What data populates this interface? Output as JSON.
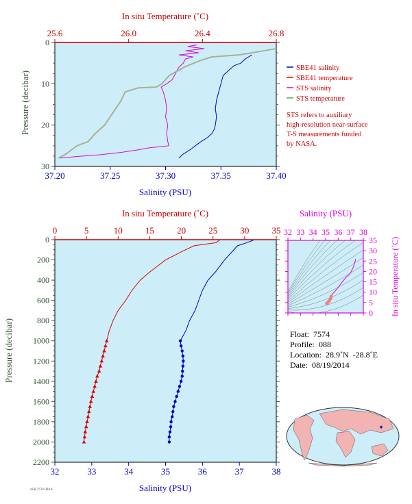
{
  "colors": {
    "plot_bg": "#cdeef8",
    "blue": "#0000cc",
    "red": "#dd0000",
    "magenta": "#dd00dd",
    "olive": "#a8b090",
    "frame_red": "#cc0000",
    "pressure_label": "#2f4f2f"
  },
  "legend": {
    "items": [
      {
        "label": "SBE41 salinity",
        "color": "#0000cc"
      },
      {
        "label": "SBE41 temperature",
        "color": "#dd0000"
      },
      {
        "label": "STS salinity",
        "color": "#dd00dd"
      },
      {
        "label": "STS temperature",
        "color": "#33bb33"
      }
    ],
    "note_lines": [
      "STS refers to auxiliary",
      "high-resolution near-surface",
      "T-S measurements funded",
      "by NASA."
    ]
  },
  "float_info": {
    "float": "Float:  7574",
    "profile": "Profile:  088",
    "location": "Location:  28.9˚N  -28.8˚E",
    "date": "Date:  08/19/2014"
  },
  "footer_id": "AG8-7574-088-X",
  "chart_data": [
    {
      "type": "line",
      "title": "",
      "top_axis_label": "In situ Temperature (˚C)",
      "top_ticks": [
        "25.6",
        "26.0",
        "26.4",
        "26.8"
      ],
      "top_range": [
        25.6,
        26.8
      ],
      "bottom_axis_label": "Salinity (PSU)",
      "bottom_ticks": [
        "37.20",
        "37.25",
        "37.30",
        "37.35",
        "37.40"
      ],
      "bottom_range": [
        37.2,
        37.4
      ],
      "ylabel": "Pressure (decibar)",
      "y_ticks": [
        "0",
        "10",
        "20",
        "30"
      ],
      "y_range": [
        0,
        30
      ],
      "y_inverted": true,
      "grid": false,
      "series": [
        {
          "name": "SBE41 salinity",
          "axis": "salinity",
          "points": [
            [
              37.378,
              3
            ],
            [
              37.372,
              4
            ],
            [
              37.368,
              5
            ],
            [
              37.362,
              5.6
            ],
            [
              37.358,
              6.5
            ],
            [
              37.352,
              8
            ],
            [
              37.35,
              10
            ],
            [
              37.348,
              12
            ],
            [
              37.346,
              14
            ],
            [
              37.345,
              16
            ],
            [
              37.346,
              18
            ],
            [
              37.345,
              20
            ],
            [
              37.344,
              21
            ],
            [
              37.342,
              22
            ],
            [
              37.338,
              23
            ],
            [
              37.332,
              24
            ],
            [
              37.327,
              25
            ],
            [
              37.322,
              26
            ],
            [
              37.316,
              27
            ],
            [
              37.312,
              28
            ]
          ]
        },
        {
          "name": "SBE41 temperature",
          "axis": "temperature",
          "points": [
            [
              25.6,
              0.05
            ],
            [
              26.8,
              0.05
            ]
          ]
        },
        {
          "name": "STS salinity",
          "axis": "salinity",
          "points": [
            [
              37.328,
              0.6
            ],
            [
              37.32,
              1
            ],
            [
              37.335,
              1.5
            ],
            [
              37.318,
              2
            ],
            [
              37.33,
              2.5
            ],
            [
              37.312,
              3
            ],
            [
              37.325,
              3.5
            ],
            [
              37.318,
              4
            ],
            [
              37.316,
              5
            ],
            [
              37.312,
              6
            ],
            [
              37.31,
              7
            ],
            [
              37.308,
              8
            ],
            [
              37.306,
              9
            ],
            [
              37.301,
              10
            ],
            [
              37.296,
              10.8
            ],
            [
              37.298,
              12
            ],
            [
              37.3,
              14
            ],
            [
              37.301,
              16
            ],
            [
              37.3,
              18
            ],
            [
              37.302,
              20
            ],
            [
              37.301,
              22
            ],
            [
              37.302,
              24
            ],
            [
              37.303,
              25
            ],
            [
              37.285,
              25.5
            ],
            [
              37.275,
              26
            ],
            [
              37.26,
              26.6
            ],
            [
              37.24,
              27.2
            ],
            [
              37.22,
              27.6
            ],
            [
              37.205,
              28
            ]
          ]
        },
        {
          "name": "STS temperature",
          "axis": "temperature",
          "points": [
            [
              26.8,
              1.5
            ],
            [
              26.6,
              3
            ],
            [
              26.45,
              3.5
            ],
            [
              26.38,
              4.5
            ],
            [
              26.3,
              6
            ],
            [
              26.22,
              8
            ],
            [
              26.18,
              10
            ],
            [
              26.15,
              10.8
            ],
            [
              26.05,
              11
            ],
            [
              25.98,
              12
            ],
            [
              25.96,
              14
            ],
            [
              25.93,
              16
            ],
            [
              25.9,
              18
            ],
            [
              25.87,
              20
            ],
            [
              25.82,
              22
            ],
            [
              25.78,
              24
            ],
            [
              25.72,
              25
            ],
            [
              25.69,
              26
            ],
            [
              25.66,
              27
            ],
            [
              25.62,
              28
            ]
          ]
        }
      ]
    },
    {
      "type": "line",
      "title": "",
      "top_axis_label": "In situ Temperature (˚C)",
      "top_ticks": [
        "0",
        "5",
        "10",
        "15",
        "20",
        "25",
        "30",
        "35"
      ],
      "top_range": [
        0,
        35
      ],
      "bottom_axis_label": "Salinity (PSU)",
      "bottom_ticks": [
        "32",
        "33",
        "34",
        "35",
        "36",
        "37",
        "38"
      ],
      "bottom_range": [
        32,
        38
      ],
      "ylabel": "Pressure (decibar)",
      "y_ticks": [
        "0",
        "200",
        "400",
        "600",
        "800",
        "1000",
        "1200",
        "1400",
        "1600",
        "1800",
        "2000",
        "2200"
      ],
      "y_range": [
        0,
        2200
      ],
      "y_inverted": true,
      "grid": false,
      "series": [
        {
          "name": "SBE41 salinity",
          "axis": "salinity",
          "points": [
            [
              37.38,
              5
            ],
            [
              37.2,
              30
            ],
            [
              36.95,
              60
            ],
            [
              36.8,
              120
            ],
            [
              36.6,
              200
            ],
            [
              36.35,
              320
            ],
            [
              36.15,
              400
            ],
            [
              36.0,
              500
            ],
            [
              35.9,
              600
            ],
            [
              35.8,
              700
            ],
            [
              35.65,
              800
            ],
            [
              35.55,
              900
            ],
            [
              35.4,
              1000
            ],
            [
              35.42,
              1050
            ],
            [
              35.45,
              1100
            ],
            [
              35.47,
              1150
            ],
            [
              35.48,
              1200
            ],
            [
              35.47,
              1250
            ],
            [
              35.46,
              1300
            ],
            [
              35.45,
              1350
            ],
            [
              35.42,
              1400
            ],
            [
              35.38,
              1450
            ],
            [
              35.34,
              1500
            ],
            [
              35.3,
              1550
            ],
            [
              35.26,
              1600
            ],
            [
              35.22,
              1650
            ],
            [
              35.2,
              1700
            ],
            [
              35.18,
              1750
            ],
            [
              35.15,
              1800
            ],
            [
              35.14,
              1850
            ],
            [
              35.12,
              1900
            ],
            [
              35.1,
              1950
            ],
            [
              35.1,
              2000
            ]
          ]
        },
        {
          "name": "SBE41 temperature",
          "axis": "temperature",
          "points": [
            [
              26,
              5
            ],
            [
              25.5,
              30
            ],
            [
              22,
              60
            ],
            [
              20,
              120
            ],
            [
              17.5,
              200
            ],
            [
              15,
              320
            ],
            [
              13.5,
              400
            ],
            [
              12.2,
              500
            ],
            [
              11.2,
              600
            ],
            [
              10,
              700
            ],
            [
              9.2,
              800
            ],
            [
              8.6,
              900
            ],
            [
              8.2,
              1000
            ],
            [
              8.0,
              1050
            ],
            [
              7.8,
              1100
            ],
            [
              7.6,
              1150
            ],
            [
              7.4,
              1200
            ],
            [
              7.2,
              1250
            ],
            [
              7.0,
              1300
            ],
            [
              6.7,
              1350
            ],
            [
              6.5,
              1400
            ],
            [
              6.3,
              1450
            ],
            [
              6.1,
              1500
            ],
            [
              5.9,
              1550
            ],
            [
              5.7,
              1600
            ],
            [
              5.55,
              1650
            ],
            [
              5.4,
              1700
            ],
            [
              5.25,
              1750
            ],
            [
              5.1,
              1800
            ],
            [
              4.95,
              1850
            ],
            [
              4.8,
              1900
            ],
            [
              4.7,
              1950
            ],
            [
              4.6,
              2000
            ]
          ]
        }
      ]
    },
    {
      "type": "scatter",
      "title": "",
      "top_axis_label": "Salinity (PSU)",
      "x_ticks": [
        "32",
        "33",
        "34",
        "35",
        "36",
        "37",
        "38"
      ],
      "x_range": [
        32,
        38
      ],
      "ylabel": "In situ Temperature (˚C)",
      "y_ticks": [
        "0",
        "5",
        "10",
        "15",
        "20",
        "25",
        "30",
        "35"
      ],
      "y_range": [
        0,
        35
      ],
      "points": [
        [
          37.4,
          26
        ],
        [
          37.2,
          22
        ],
        [
          36.95,
          19
        ],
        [
          36.6,
          17
        ],
        [
          36.2,
          14
        ],
        [
          35.9,
          11.5
        ],
        [
          35.6,
          9.5
        ],
        [
          35.45,
          8
        ],
        [
          35.4,
          7
        ],
        [
          35.3,
          6
        ],
        [
          35.2,
          5.2
        ],
        [
          35.1,
          4.6
        ]
      ]
    }
  ]
}
